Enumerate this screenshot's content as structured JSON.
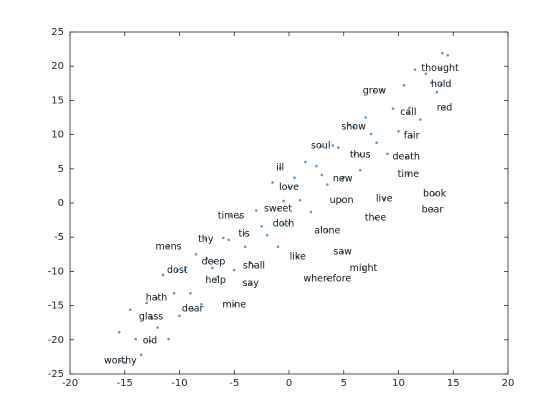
{
  "chart_data": {
    "type": "scatter",
    "xlim": [
      -20,
      20
    ],
    "ylim": [
      -25,
      25
    ],
    "xticks": [
      -20,
      -15,
      -10,
      -5,
      0,
      5,
      10,
      15,
      20
    ],
    "yticks": [
      -25,
      -20,
      -15,
      -10,
      -5,
      0,
      5,
      10,
      15,
      20,
      25
    ],
    "series": [
      {
        "color": "#4a9bd6",
        "x": [
          -15.5,
          -15,
          -14.5,
          -14,
          -13.5,
          -13,
          -12.5,
          -12,
          -11.5,
          -11,
          -10.5,
          -10,
          -9.5,
          -9,
          -8.5,
          -8,
          -7.5,
          -7,
          -6.5,
          -6,
          -5.5,
          -5,
          -4.5,
          -4,
          -3.5,
          -3,
          -2.5,
          -2,
          -1.5,
          -1,
          -0.5,
          0,
          0.5,
          1,
          1.5,
          2,
          2.5,
          3,
          3.5,
          4,
          4.5,
          5,
          5.5,
          6,
          6.5,
          7,
          7.5,
          8,
          8.5,
          9,
          9.5,
          10,
          10.5,
          11,
          11.5,
          12,
          12.5,
          13,
          13.5,
          14,
          14.5
        ],
        "y": [
          -18.9,
          -23.3,
          -15.6,
          -19.9,
          -22.2,
          -14.6,
          -16.9,
          -18.2,
          -10.5,
          -19.9,
          -13.2,
          -16.5,
          -9.8,
          -13.2,
          -7.5,
          -14.8,
          -8.1,
          -9.5,
          -10.8,
          -5.1,
          -5.4,
          -9.8,
          -2.1,
          -6.4,
          -8.7,
          -1.1,
          -3.4,
          -4.7,
          3.0,
          -6.4,
          0.3,
          -3,
          3.7,
          0.4,
          6.0,
          -1.3,
          5.4,
          4.1,
          2.7,
          8.4,
          8.1,
          3.8,
          11.4,
          7.1,
          4.8,
          12.5,
          10.1,
          8.8,
          16.5,
          7.2,
          13.8,
          10.5,
          17.2,
          13.9,
          19.5,
          12.2,
          18.9,
          17.6,
          16.2,
          21.9,
          21.6
        ]
      }
    ],
    "annotations": [
      {
        "text": "thought",
        "x": 13.8,
        "y": 19.7
      },
      {
        "text": "hold",
        "x": 13.9,
        "y": 17.3
      },
      {
        "text": "grow",
        "x": 7.8,
        "y": 16.4
      },
      {
        "text": "red",
        "x": 14.2,
        "y": 13.9
      },
      {
        "text": "call",
        "x": 10.9,
        "y": 13.2
      },
      {
        "text": "show",
        "x": 5.9,
        "y": 11.1
      },
      {
        "text": "fair",
        "x": 11.2,
        "y": 9.8
      },
      {
        "text": "soul",
        "x": 2.9,
        "y": 8.3
      },
      {
        "text": "thus",
        "x": 6.5,
        "y": 7.0
      },
      {
        "text": "death",
        "x": 10.7,
        "y": 6.7
      },
      {
        "text": "ill",
        "x": -0.8,
        "y": 5.1
      },
      {
        "text": "time",
        "x": 10.9,
        "y": 4.2
      },
      {
        "text": "new",
        "x": 4.9,
        "y": 3.5
      },
      {
        "text": "love",
        "x": 0,
        "y": 2.3
      },
      {
        "text": "live",
        "x": 8.7,
        "y": 0.6
      },
      {
        "text": "book",
        "x": 13.3,
        "y": 1.3
      },
      {
        "text": "upon",
        "x": 4.8,
        "y": 0.4
      },
      {
        "text": "bear",
        "x": 13.1,
        "y": -1.0
      },
      {
        "text": "sweet",
        "x": -1.0,
        "y": -0.9
      },
      {
        "text": "times",
        "x": -5.3,
        "y": -1.9
      },
      {
        "text": "thee",
        "x": 7.9,
        "y": -2.2
      },
      {
        "text": "doth",
        "x": -0.5,
        "y": -3.1
      },
      {
        "text": "alone",
        "x": 3.5,
        "y": -4.1
      },
      {
        "text": "tis",
        "x": -4.1,
        "y": -4.5
      },
      {
        "text": "thy",
        "x": -7.6,
        "y": -5.3
      },
      {
        "text": "mens",
        "x": -11.0,
        "y": -6.4
      },
      {
        "text": "saw",
        "x": 4.9,
        "y": -7.2
      },
      {
        "text": "deep",
        "x": -6.9,
        "y": -8.6
      },
      {
        "text": "like",
        "x": 0.8,
        "y": -7.9
      },
      {
        "text": "shall",
        "x": -3.2,
        "y": -9.2
      },
      {
        "text": "might",
        "x": 6.8,
        "y": -9.6
      },
      {
        "text": "dost",
        "x": -10.2,
        "y": -9.9
      },
      {
        "text": "help",
        "x": -6.7,
        "y": -11.3
      },
      {
        "text": "wherefore",
        "x": 3.5,
        "y": -11.1
      },
      {
        "text": "say",
        "x": -3.5,
        "y": -11.8
      },
      {
        "text": "hath",
        "x": -12.1,
        "y": -13.9
      },
      {
        "text": "mine",
        "x": -5.0,
        "y": -14.9
      },
      {
        "text": "dear",
        "x": -8.8,
        "y": -15.5
      },
      {
        "text": "glass",
        "x": -12.6,
        "y": -16.7
      },
      {
        "text": "old",
        "x": -12.7,
        "y": -20.2
      },
      {
        "text": "worthy",
        "x": -15.4,
        "y": -23.1
      }
    ]
  }
}
